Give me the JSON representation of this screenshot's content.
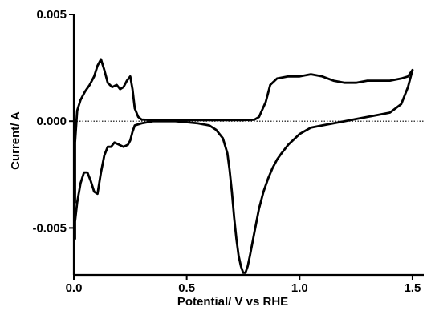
{
  "chart_data": {
    "type": "line",
    "title": "",
    "xlabel": "Potential/ V vs RHE",
    "ylabel": "Current/ A",
    "xlim": [
      0,
      1.55
    ],
    "ylim": [
      -0.0072,
      0.005
    ],
    "x_ticks": [
      0.0,
      0.5,
      1.0,
      1.5
    ],
    "x_tick_labels": [
      "0.0",
      "0.5",
      "1.0",
      "1.5"
    ],
    "y_ticks": [
      0.005,
      0.0,
      -0.005
    ],
    "y_tick_labels": [
      "0.005",
      "0.000",
      "-0.005"
    ],
    "zero_line": {
      "y": 0,
      "style": "dotted"
    },
    "grid": false,
    "legend": "none",
    "series": [
      {
        "x": [
          0.0,
          0.005,
          0.015,
          0.03,
          0.05,
          0.07,
          0.09,
          0.105,
          0.12,
          0.135,
          0.15,
          0.17,
          0.19,
          0.205,
          0.22,
          0.235,
          0.25,
          0.26,
          0.27,
          0.285,
          0.3,
          0.35,
          0.4,
          0.45,
          0.5,
          0.55,
          0.6,
          0.65,
          0.7,
          0.75,
          0.8,
          0.82,
          0.85,
          0.87,
          0.9,
          0.95,
          1.0,
          1.05,
          1.1,
          1.15,
          1.2,
          1.25,
          1.3,
          1.35,
          1.4,
          1.45,
          1.48,
          1.5
        ],
        "y": [
          -0.0038,
          -0.001,
          0.0005,
          0.001,
          0.0014,
          0.0017,
          0.0021,
          0.0026,
          0.0029,
          0.0024,
          0.0018,
          0.0016,
          0.0017,
          0.0015,
          0.0016,
          0.0019,
          0.0021,
          0.0015,
          0.0006,
          0.0002,
          8e-05,
          5e-05,
          5e-05,
          5e-05,
          5e-05,
          5e-05,
          5e-05,
          5e-05,
          5e-05,
          5e-05,
          7e-05,
          0.0002,
          0.0009,
          0.0017,
          0.002,
          0.0021,
          0.0021,
          0.0022,
          0.0021,
          0.0019,
          0.0018,
          0.0018,
          0.0019,
          0.0019,
          0.0019,
          0.002,
          0.0021,
          0.0024
        ]
      },
      {
        "x": [
          1.5,
          1.48,
          1.45,
          1.4,
          1.35,
          1.3,
          1.25,
          1.2,
          1.15,
          1.1,
          1.05,
          1.0,
          0.98,
          0.95,
          0.92,
          0.9,
          0.88,
          0.86,
          0.84,
          0.82,
          0.8,
          0.78,
          0.77,
          0.76,
          0.75,
          0.74,
          0.73,
          0.72,
          0.71,
          0.7,
          0.69,
          0.68,
          0.66,
          0.63,
          0.6,
          0.55,
          0.5,
          0.45,
          0.4,
          0.35,
          0.3,
          0.27,
          0.26,
          0.25,
          0.24,
          0.22,
          0.2,
          0.18,
          0.165,
          0.15,
          0.135,
          0.12,
          0.105,
          0.09,
          0.075,
          0.06,
          0.045,
          0.03,
          0.015,
          0.005,
          0.0
        ],
        "y": [
          0.0024,
          0.0016,
          0.0008,
          0.0004,
          0.0003,
          0.0002,
          0.0001,
          0.0,
          -0.0001,
          -0.0002,
          -0.0003,
          -0.0006,
          -0.0008,
          -0.0011,
          -0.0015,
          -0.0018,
          -0.0022,
          -0.0027,
          -0.0033,
          -0.0041,
          -0.0052,
          -0.0063,
          -0.0068,
          -0.0071,
          -0.0071,
          -0.0068,
          -0.0063,
          -0.0055,
          -0.0045,
          -0.0033,
          -0.0023,
          -0.0015,
          -0.0008,
          -0.0004,
          -0.0002,
          -0.0001,
          -5e-05,
          0.0,
          0.0,
          0.0,
          -0.0001,
          -0.0002,
          -0.0005,
          -0.0009,
          -0.0011,
          -0.0012,
          -0.0011,
          -0.001,
          -0.0012,
          -0.0012,
          -0.0016,
          -0.0024,
          -0.0034,
          -0.0033,
          -0.0028,
          -0.0024,
          -0.0024,
          -0.0029,
          -0.0038,
          -0.0047,
          -0.0055
        ]
      }
    ]
  }
}
